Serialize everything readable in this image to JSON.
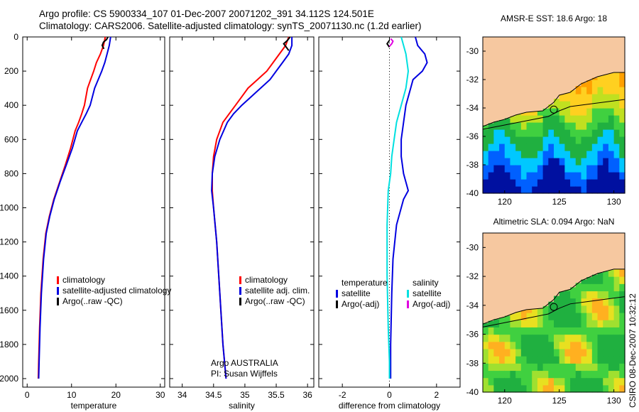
{
  "header": {
    "line1": "Argo profile: CS 5900334_107 01-Dec-2007 20071202_391 34.112S 124.501E",
    "line2": "Climatology: CARS2006. Satellite-adjusted climatology: synTS_20071130.nc (1.2d earlier)"
  },
  "credit": "CSIRO 08-Dec-2007 10:32:12",
  "colors": {
    "climatology": "#ff0000",
    "satellite": "#0000e0",
    "argo": "#000000",
    "satellite_salinity": "#00e0e0",
    "argo_salinity": "#e000e0",
    "land": "#f6c8a0"
  },
  "chart_data": [
    {
      "type": "line",
      "xlabel": "temperature",
      "ylabel": "",
      "xlim": [
        -1,
        31
      ],
      "ylim": [
        2050,
        0
      ],
      "x_ticks": [
        0,
        10,
        20,
        30
      ],
      "y_ticks": [
        0,
        200,
        400,
        600,
        800,
        1000,
        1200,
        1400,
        1600,
        1800,
        2000
      ],
      "series": [
        {
          "name": "climatology",
          "color": "#ff0000",
          "x": [
            17.6,
            17.2,
            16.5,
            15.6,
            15.0,
            14.3,
            13.6,
            12.9,
            12.3,
            11.6,
            10.8,
            9.8,
            8.6,
            7.3,
            6.0,
            5.0,
            4.2,
            3.6,
            3.1,
            2.8,
            2.6,
            2.5
          ],
          "y": [
            0,
            50,
            100,
            150,
            200,
            250,
            300,
            400,
            450,
            500,
            550,
            650,
            750,
            850,
            950,
            1050,
            1150,
            1300,
            1500,
            1700,
            1900,
            2000
          ]
        },
        {
          "name": "satellite-adjusted climatology",
          "color": "#0000e0",
          "x": [
            18.8,
            18.5,
            18.0,
            17.5,
            16.8,
            16.0,
            15.2,
            14.2,
            13.3,
            12.3,
            11.3,
            10.2,
            8.8,
            7.4,
            6.1,
            5.1,
            4.3,
            3.7,
            3.2,
            2.9,
            2.7,
            2.6
          ],
          "y": [
            0,
            50,
            100,
            150,
            200,
            250,
            300,
            400,
            450,
            500,
            550,
            650,
            750,
            850,
            950,
            1050,
            1150,
            1300,
            1500,
            1700,
            1900,
            2000
          ]
        },
        {
          "name": "Argo(..raw -QC)",
          "color": "#000000",
          "x": [
            18.2,
            17.9,
            17.2,
            16.9,
            17.3
          ],
          "y": [
            0,
            15,
            30,
            50,
            70
          ]
        }
      ],
      "legend_position": "bottom-right"
    },
    {
      "type": "line",
      "xlabel": "salinity",
      "ylabel": "",
      "xlim": [
        33.8,
        36.1
      ],
      "ylim": [
        2050,
        0
      ],
      "x_ticks": [
        34,
        34.5,
        35,
        35.5,
        36
      ],
      "y_ticks": [],
      "series": [
        {
          "name": "climatology",
          "color": "#ff0000",
          "x": [
            35.7,
            35.65,
            35.55,
            35.45,
            35.35,
            35.2,
            35.05,
            34.95,
            34.85,
            34.75,
            34.65,
            34.55,
            34.5,
            34.48,
            34.48,
            34.5,
            34.55,
            34.6,
            34.65,
            34.7
          ],
          "y": [
            0,
            50,
            100,
            150,
            200,
            250,
            300,
            350,
            400,
            450,
            500,
            600,
            700,
            800,
            900,
            1000,
            1200,
            1500,
            1800,
            2000
          ]
        },
        {
          "name": "satellite adj. clim.",
          "color": "#0000e0",
          "x": [
            35.75,
            35.75,
            35.7,
            35.6,
            35.5,
            35.4,
            35.25,
            35.1,
            34.95,
            34.82,
            34.72,
            34.6,
            34.52,
            34.48,
            34.47,
            34.5,
            34.55,
            34.6,
            34.65,
            34.7
          ],
          "y": [
            0,
            50,
            100,
            150,
            200,
            250,
            300,
            350,
            400,
            450,
            500,
            600,
            700,
            800,
            900,
            1000,
            1200,
            1500,
            1800,
            2000
          ]
        },
        {
          "name": "Argo(..raw -QC)",
          "color": "#000000",
          "x": [
            35.72,
            35.68,
            35.62,
            35.66,
            35.7
          ],
          "y": [
            0,
            20,
            40,
            60,
            80
          ]
        }
      ],
      "annotations": [
        "Argo AUSTRALIA",
        "PI: Susan Wijffels"
      ],
      "legend_position": "bottom-right"
    },
    {
      "type": "line",
      "xlabel": "difference from climatology",
      "ylabel": "",
      "xlim": [
        -3,
        3
      ],
      "ylim": [
        2050,
        0
      ],
      "x_ticks": [
        -2,
        0,
        2
      ],
      "y_ticks": [],
      "series": [
        {
          "name": "temperature satellite",
          "color": "#0000e0",
          "x": [
            1.1,
            1.2,
            1.5,
            1.6,
            1.4,
            1.0,
            0.9,
            0.7,
            0.6,
            0.5,
            0.5,
            0.6,
            0.7,
            0.8,
            0.6,
            0.3,
            0.15,
            0.1,
            0.05,
            0.05
          ],
          "y": [
            0,
            50,
            100,
            150,
            200,
            250,
            300,
            400,
            500,
            600,
            700,
            800,
            850,
            900,
            950,
            1100,
            1300,
            1500,
            1800,
            2000
          ]
        },
        {
          "name": "salinity satellite",
          "color": "#00e0e0",
          "x": [
            0.5,
            0.7,
            0.8,
            0.7,
            0.5,
            0.3,
            0.2,
            0.1,
            0.05,
            -0.05,
            -0.1,
            -0.1,
            -0.05,
            0.0,
            0.0
          ],
          "y": [
            0,
            100,
            200,
            300,
            400,
            500,
            600,
            700,
            800,
            900,
            1100,
            1400,
            1700,
            1900,
            2000
          ]
        },
        {
          "name": "temperature Argo(-adj)",
          "color": "#000000",
          "x": [
            0.0,
            -0.1,
            0.0
          ],
          "y": [
            20,
            40,
            60
          ]
        },
        {
          "name": "salinity Argo(-adj)",
          "color": "#e000e0",
          "x": [
            0.05,
            0.15,
            0.1,
            0.0
          ],
          "y": [
            10,
            25,
            40,
            55
          ]
        }
      ],
      "legend": {
        "headers": [
          "temperature",
          "salinity"
        ],
        "items": [
          {
            "label": "satellite",
            "color": "#0000e0",
            "column": 0
          },
          {
            "label": "Argo(-adj)",
            "color": "#000000",
            "column": 0
          },
          {
            "label": "satellite",
            "color": "#00e0e0",
            "column": 1
          },
          {
            "label": "Argo(-adj)",
            "color": "#e000e0",
            "column": 1
          }
        ]
      },
      "legend_position": "bottom"
    },
    {
      "type": "heatmap",
      "title": "AMSR-E SST: 18.6 Argo: 18",
      "xlim": [
        118,
        131
      ],
      "ylim": [
        -40,
        -29
      ],
      "x_ticks": [
        120,
        125,
        130
      ],
      "y_ticks": [
        -30,
        -32,
        -34,
        -36,
        -38,
        -40
      ],
      "marker": {
        "lon": 124.501,
        "lat": -34.112
      },
      "coast": [
        [
          118,
          -35.3
        ],
        [
          119,
          -35.0
        ],
        [
          120,
          -34.8
        ],
        [
          121,
          -34.5
        ],
        [
          122,
          -34.3
        ],
        [
          123.5,
          -34.2
        ],
        [
          124.5,
          -33.6
        ],
        [
          125,
          -33.1
        ],
        [
          126,
          -32.9
        ],
        [
          127,
          -32.3
        ],
        [
          128.5,
          -31.8
        ],
        [
          130,
          -31.5
        ],
        [
          131,
          -31.5
        ]
      ],
      "shelf": [
        [
          118,
          -35.5
        ],
        [
          120,
          -35.2
        ],
        [
          122,
          -34.9
        ],
        [
          124,
          -34.6
        ],
        [
          125,
          -34.2
        ],
        [
          126,
          -33.9
        ],
        [
          128,
          -33.7
        ],
        [
          130,
          -33.5
        ],
        [
          131,
          -33.4
        ]
      ]
    },
    {
      "type": "heatmap",
      "title": "Altimetric SLA: 0.094 Argo: NaN",
      "xlim": [
        118,
        131
      ],
      "ylim": [
        -40,
        -29
      ],
      "x_ticks": [
        120,
        125,
        130
      ],
      "y_ticks": [
        -30,
        -32,
        -34,
        -36,
        -38,
        -40
      ],
      "marker": {
        "lon": 124.501,
        "lat": -34.112
      },
      "coast": [
        [
          118,
          -35.3
        ],
        [
          119,
          -35.0
        ],
        [
          120,
          -34.8
        ],
        [
          121,
          -34.5
        ],
        [
          122,
          -34.3
        ],
        [
          123.5,
          -34.2
        ],
        [
          124.5,
          -33.6
        ],
        [
          125,
          -33.1
        ],
        [
          126,
          -32.9
        ],
        [
          127,
          -32.3
        ],
        [
          128.5,
          -31.8
        ],
        [
          130,
          -31.5
        ],
        [
          131,
          -31.5
        ]
      ],
      "shelf": [
        [
          118,
          -35.5
        ],
        [
          120,
          -35.2
        ],
        [
          122,
          -34.9
        ],
        [
          124,
          -34.6
        ],
        [
          125,
          -34.2
        ],
        [
          126,
          -33.9
        ],
        [
          128,
          -33.7
        ],
        [
          130,
          -33.5
        ],
        [
          131,
          -33.4
        ]
      ]
    }
  ]
}
